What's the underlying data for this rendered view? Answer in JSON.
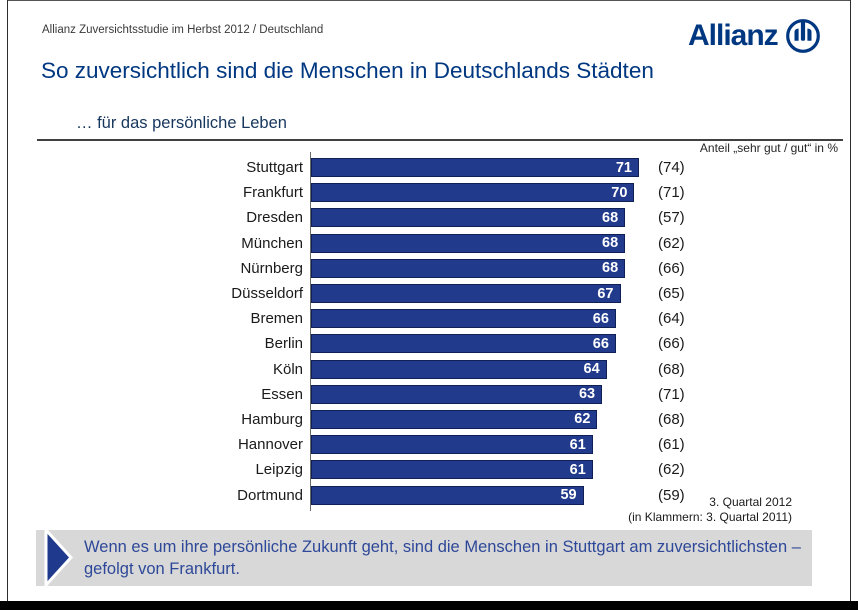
{
  "header": {
    "study_label": "Allianz Zuversichtsstudie im Herbst 2012 / Deutschland",
    "brand": "Allianz",
    "logo_icon": "allianz-eagle-circle-logo"
  },
  "title": "So zuversichtlich sind die Menschen in Deutschlands Städten",
  "subtitle": "… für das persönliche Leben",
  "chart_data": {
    "type": "bar",
    "orientation": "horizontal",
    "value_axis_label": "Anteil „sehr gut / gut“ in %",
    "categories": [
      "Stuttgart",
      "Frankfurt",
      "Dresden",
      "München",
      "Nürnberg",
      "Düsseldorf",
      "Bremen",
      "Berlin",
      "Köln",
      "Essen",
      "Hamburg",
      "Hannover",
      "Leipzig",
      "Dortmund"
    ],
    "series": [
      {
        "name": "3. Quartal 2012",
        "values": [
          71,
          70,
          68,
          68,
          68,
          67,
          66,
          66,
          64,
          63,
          62,
          61,
          61,
          59
        ]
      },
      {
        "name": "3. Quartal 2011",
        "values": [
          74,
          71,
          57,
          62,
          66,
          65,
          64,
          66,
          68,
          71,
          68,
          61,
          62,
          59
        ]
      }
    ],
    "xlim": [
      0,
      100
    ],
    "grid": false,
    "legend": false,
    "footnote_line1": "3. Quartal 2012",
    "footnote_line2": "(in Klammern: 3. Quartal 2011)"
  },
  "key_message": {
    "text": "Wenn es um ihre persönliche Zukunft geht, sind die Menschen in Stuttgart am zuversichtlichsten – gefolgt von Frankfurt."
  },
  "colors": {
    "brand_blue": "#003781",
    "title_blue": "#003781",
    "subtitle_navy": "#17365d",
    "bar_fill": "#213a8b",
    "bar_border": "#0f2057",
    "bar_value_text": "#ffffff",
    "key_message_bg": "#d8d8d8",
    "key_message_text": "#2e4899",
    "arrow_fill": "#1f3a8c",
    "bottom_bar": "#000000"
  }
}
